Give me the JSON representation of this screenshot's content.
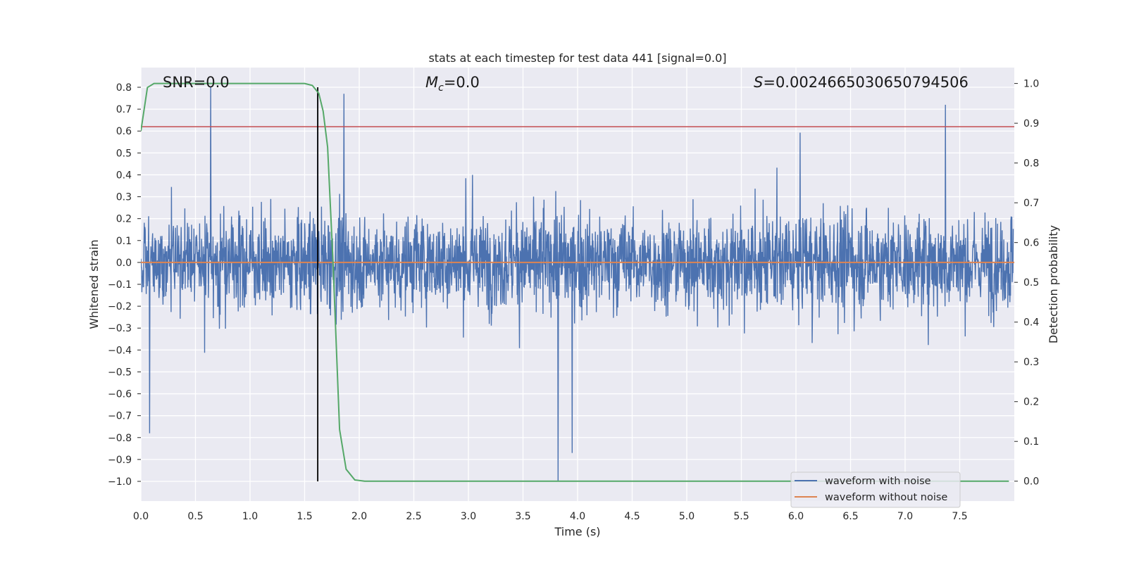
{
  "chart_data": {
    "type": "line",
    "title": "stats at each timestep for test data 441 [signal=0.0]",
    "xlabel": "Time (s)",
    "ylabel": "Whitened strain",
    "y2label": "Detection probability",
    "xlim": [
      0.0,
      8.0
    ],
    "ylim": [
      -1.09,
      0.89
    ],
    "y2lim": [
      -0.05,
      1.04
    ],
    "x_ticks": [
      "0.0",
      "0.5",
      "1.0",
      "1.5",
      "2.0",
      "2.5",
      "3.0",
      "3.5",
      "4.0",
      "4.5",
      "5.0",
      "5.5",
      "6.0",
      "6.5",
      "7.0",
      "7.5"
    ],
    "y_ticks": [
      "0.8",
      "0.7",
      "0.6",
      "0.5",
      "0.4",
      "0.3",
      "0.2",
      "0.1",
      "0.0",
      "−0.1",
      "−0.2",
      "−0.3",
      "−0.4",
      "−0.5",
      "−0.6",
      "−0.7",
      "−0.8",
      "−0.9",
      "−1.0"
    ],
    "y2_ticks": [
      "0.0",
      "0.1",
      "0.2",
      "0.3",
      "0.4",
      "0.5",
      "0.6",
      "0.7",
      "0.8",
      "0.9",
      "1.0"
    ],
    "grid": true,
    "legend_position": "bottom-right",
    "annotations": {
      "snr": "SNR=0.0",
      "mc_symbol": "M",
      "mc_sub": "c",
      "mc_value": "=0.0",
      "s_symbol": "S",
      "s_value": "=0.0024665030650794506"
    },
    "series": [
      {
        "name": "waveform with noise",
        "axis": "left",
        "color": "#4c72b0",
        "note_kind": "noise",
        "envelope_typical": [
          -0.35,
          0.35
        ],
        "notable_peaks": [
          {
            "x": 0.64,
            "y": 0.8
          },
          {
            "x": 1.62,
            "y": 0.8
          },
          {
            "x": 1.86,
            "y": 0.77
          },
          {
            "x": 3.82,
            "y": -1.0
          },
          {
            "x": 3.95,
            "y": -0.87
          },
          {
            "x": 0.08,
            "y": -0.78
          },
          {
            "x": 7.37,
            "y": 0.72
          }
        ]
      },
      {
        "name": "waveform without noise",
        "axis": "left",
        "color": "#dd8452",
        "x": [
          0.0,
          8.0
        ],
        "y": [
          0.0,
          0.0
        ]
      },
      {
        "axis": "right",
        "color": "#55a868",
        "x": [
          0.0,
          0.06,
          0.12,
          0.3,
          0.8,
          1.2,
          1.5,
          1.57,
          1.63,
          1.67,
          1.71,
          1.76,
          1.82,
          1.88,
          1.96,
          2.05,
          2.5,
          4.0,
          6.0,
          7.95
        ],
        "y": [
          0.88,
          0.99,
          1.0,
          1.0,
          1.0,
          1.0,
          1.0,
          0.995,
          0.975,
          0.93,
          0.84,
          0.55,
          0.13,
          0.03,
          0.003,
          0.0,
          0.0,
          0.0,
          0.0,
          0.0
        ]
      }
    ],
    "reference_lines": [
      {
        "orientation": "horizontal",
        "axis": "left",
        "y": 0.62,
        "color": "#c44e52"
      },
      {
        "orientation": "vertical",
        "x": 1.62,
        "y_range": [
          -1.0,
          0.8
        ],
        "color": "#000000"
      }
    ]
  }
}
